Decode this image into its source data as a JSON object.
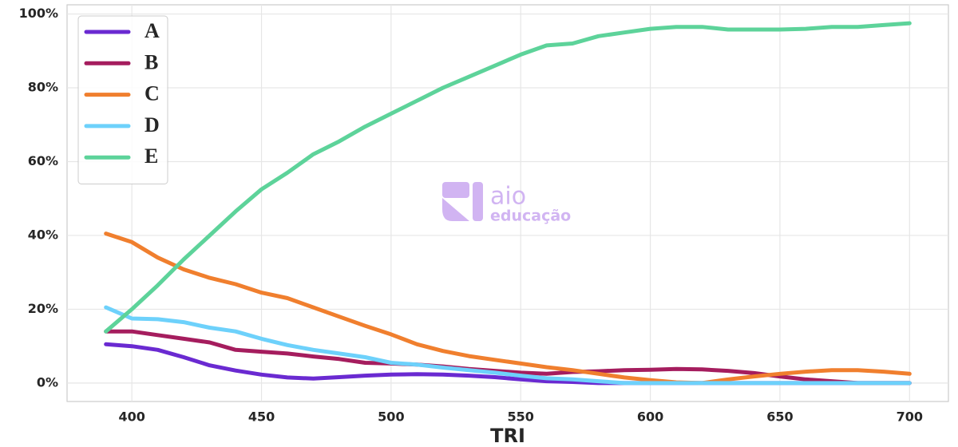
{
  "chart_data": {
    "type": "line",
    "x_label": "TRI",
    "watermark": [
      "aio",
      "educação"
    ],
    "x": [
      390,
      400,
      410,
      420,
      430,
      440,
      450,
      460,
      470,
      480,
      490,
      500,
      510,
      520,
      530,
      540,
      550,
      560,
      570,
      580,
      590,
      600,
      610,
      620,
      630,
      640,
      650,
      660,
      670,
      680,
      690,
      700
    ],
    "series": [
      {
        "name": "A",
        "color": "#6a2ad1",
        "values": [
          10.5,
          10,
          9,
          7,
          4.8,
          3.4,
          2.3,
          1.5,
          1.2,
          1.6,
          2,
          2.3,
          2.4,
          2.3,
          2,
          1.6,
          1,
          0.5,
          0.3,
          0,
          0,
          0,
          0,
          0,
          0,
          0,
          0,
          0,
          0,
          0,
          0,
          0
        ]
      },
      {
        "name": "B",
        "color": "#a51d5e",
        "values": [
          14,
          14,
          13,
          12,
          11,
          9,
          8.5,
          8,
          7.2,
          6.5,
          5.5,
          5.3,
          5,
          4.5,
          3.8,
          3.3,
          2.8,
          2.5,
          3,
          3.2,
          3.5,
          3.6,
          3.8,
          3.7,
          3.3,
          2.7,
          1.8,
          1,
          0.5,
          0,
          0,
          0
        ]
      },
      {
        "name": "C",
        "color": "#f07f2e",
        "values": [
          40.5,
          38.2,
          34,
          30.8,
          28.5,
          26.8,
          24.5,
          23,
          20.5,
          18,
          15.5,
          13.2,
          10.5,
          8.7,
          7.3,
          6.3,
          5.3,
          4.3,
          3.5,
          2.5,
          1.5,
          0.8,
          0.2,
          0,
          1,
          1.8,
          2.5,
          3.1,
          3.5,
          3.5,
          3.1,
          2.5
        ]
      },
      {
        "name": "D",
        "color": "#6dd1fb",
        "values": [
          20.5,
          17.5,
          17.3,
          16.5,
          15,
          14,
          12,
          10.3,
          9,
          8,
          7,
          5.5,
          5,
          4.2,
          3.5,
          2.8,
          2,
          1.3,
          1,
          0.5,
          0,
          0,
          0,
          0,
          0,
          0,
          0,
          0,
          0,
          0,
          0,
          0
        ]
      },
      {
        "name": "E",
        "color": "#5dd39a",
        "values": [
          14,
          20,
          26.5,
          33.5,
          40,
          46.5,
          52.5,
          57,
          62,
          65.5,
          69.5,
          73,
          76.5,
          80,
          83,
          86,
          89,
          91.5,
          92,
          94,
          95,
          96,
          96.5,
          96.5,
          95.8,
          95.8,
          95.8,
          96,
          96.5,
          96.5,
          97,
          97.5
        ]
      }
    ],
    "xlim": [
      375,
      715
    ],
    "ylim": [
      -5,
      102.5
    ],
    "xticks": [
      400,
      450,
      500,
      550,
      600,
      650,
      700
    ],
    "yticks": [
      {
        "value": 0,
        "label": "0%"
      },
      {
        "value": 20,
        "label": "20%"
      },
      {
        "value": 40,
        "label": "40%"
      },
      {
        "value": 60,
        "label": "60%"
      },
      {
        "value": 80,
        "label": "80%"
      },
      {
        "value": 100,
        "label": "100%"
      }
    ],
    "grid": true,
    "legend": "upper left"
  }
}
